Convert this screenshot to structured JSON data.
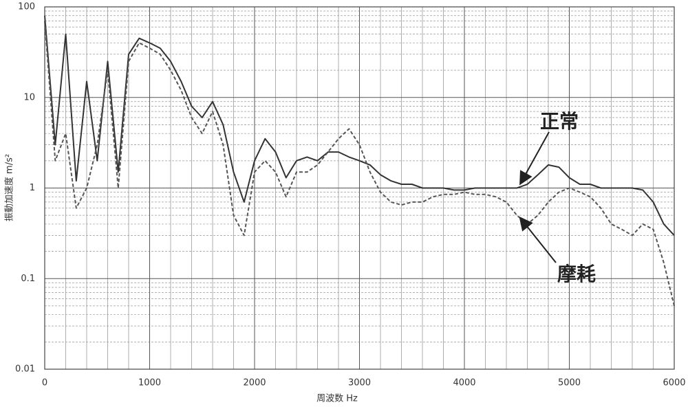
{
  "chart_data": {
    "type": "line",
    "xlabel": "周波数 Hz",
    "ylabel": "振動加速度 m/s²",
    "x": [
      0,
      100,
      200,
      300,
      400,
      500,
      600,
      700,
      800,
      900,
      1000,
      1100,
      1200,
      1300,
      1400,
      1500,
      1600,
      1700,
      1800,
      1900,
      2000,
      2100,
      2200,
      2300,
      2400,
      2500,
      2600,
      2700,
      2800,
      2900,
      3000,
      3100,
      3200,
      3300,
      3400,
      3500,
      3600,
      3700,
      3800,
      3900,
      4000,
      4100,
      4200,
      4300,
      4400,
      4500,
      4600,
      4700,
      4800,
      4900,
      5000,
      5100,
      5200,
      5300,
      5400,
      5500,
      5600,
      5700,
      5800,
      5900,
      6000
    ],
    "series": [
      {
        "name": "正常",
        "color": "#333333",
        "dash": false,
        "values": [
          80,
          3,
          50,
          1.2,
          15,
          2,
          25,
          1.5,
          30,
          45,
          40,
          35,
          25,
          15,
          8,
          6,
          9,
          5,
          1.5,
          0.7,
          2,
          3.5,
          2.5,
          1.3,
          2,
          2.2,
          2,
          2.5,
          2.5,
          2.2,
          2,
          1.8,
          1.4,
          1.2,
          1.1,
          1.1,
          1,
          1,
          1,
          0.95,
          0.95,
          1,
          1,
          1,
          1,
          1,
          1.1,
          1.4,
          1.8,
          1.7,
          1.3,
          1.1,
          1.1,
          1,
          1,
          1,
          1,
          0.95,
          0.7,
          0.4,
          0.3
        ]
      },
      {
        "name": "摩耗",
        "color": "#555555",
        "dash": true,
        "values": [
          70,
          2,
          4,
          0.6,
          1,
          3,
          20,
          1,
          25,
          40,
          35,
          30,
          20,
          12,
          6,
          4,
          7,
          3,
          0.5,
          0.3,
          1.5,
          2,
          1.5,
          0.8,
          1.5,
          1.5,
          1.8,
          2.5,
          3.5,
          4.5,
          3,
          1.5,
          0.9,
          0.7,
          0.65,
          0.7,
          0.7,
          0.8,
          0.85,
          0.85,
          0.9,
          0.85,
          0.85,
          0.8,
          0.7,
          0.5,
          0.4,
          0.5,
          0.7,
          0.9,
          1,
          0.9,
          0.8,
          0.6,
          0.4,
          0.35,
          0.3,
          0.4,
          0.35,
          0.15,
          0.05
        ]
      }
    ],
    "xlim": [
      0,
      6000
    ],
    "xticks": [
      0,
      1000,
      2000,
      3000,
      4000,
      5000,
      6000
    ],
    "x_minor_grid": [
      200,
      400,
      600,
      800,
      1200,
      1400,
      1600,
      1800,
      2200,
      2400,
      2600,
      2800,
      3200,
      3400,
      3600,
      3800,
      4200,
      4400,
      4600,
      4800,
      5200,
      5400,
      5600,
      5800
    ],
    "ylim": [
      0.01,
      100
    ],
    "yticks": [
      0.01,
      0.1,
      1,
      10,
      100
    ],
    "ylog": true,
    "y_minor_grid": [
      0.02,
      0.03,
      0.04,
      0.05,
      0.06,
      0.07,
      0.08,
      0.09,
      0.2,
      0.3,
      0.4,
      0.5,
      0.6,
      0.7,
      0.8,
      0.9,
      2,
      3,
      4,
      5,
      6,
      7,
      8,
      9,
      20,
      30,
      40,
      50,
      60,
      70,
      80,
      90
    ],
    "grid": true
  }
}
